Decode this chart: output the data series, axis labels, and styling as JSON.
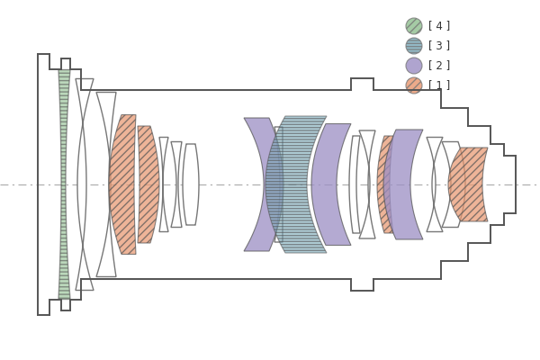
{
  "bg_color": "#ffffff",
  "colors": {
    "xa": "#E8956D",
    "ed_purple": "#9B8EC4",
    "ed_blue": "#7AAABB",
    "xa_green": "#8FBF8F",
    "white_lens": "#ffffff",
    "barrel": "#555555",
    "axis": "#aaaaaa"
  },
  "legend": {
    "items": [
      "[ 1 ]",
      "[ 2 ]",
      "[ 3 ]",
      "[ 4 ]"
    ],
    "colors": [
      "#E8956D",
      "#9B8EC4",
      "#7AAABB",
      "#8FBF8F"
    ],
    "hatches": [
      "////",
      "",
      "|||",
      "////"
    ]
  }
}
